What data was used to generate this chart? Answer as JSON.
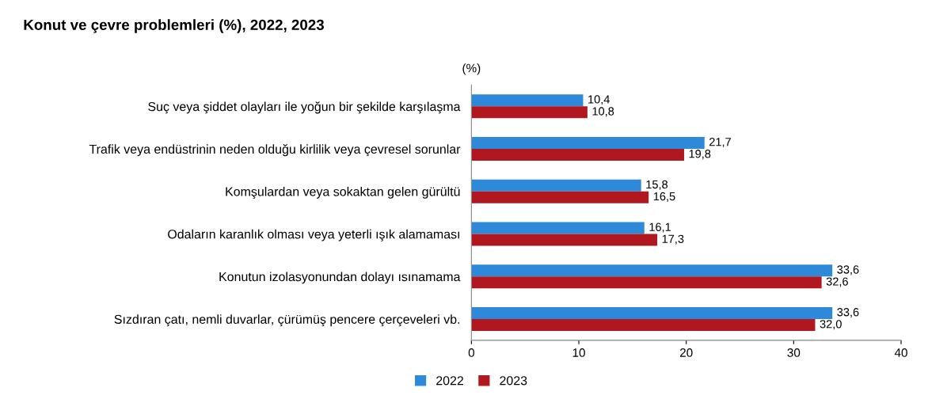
{
  "chart_data": {
    "type": "bar",
    "orientation": "horizontal",
    "title": "Konut ve çevre problemleri (%), 2022, 2023",
    "annotations": [
      "(%)"
    ],
    "categories": [
      "Suç veya şiddet olayları ile yoğun bir şekilde karşılaşma",
      "Trafik veya endüstrinin neden olduğu kirlilik veya çevresel sorunlar",
      "Komşulardan veya sokaktan gelen gürültü",
      "Odaların karanlık olması veya yeterli ışık alamaması",
      "Konutun izolasyonundan dolayı ısınamama",
      "Sızdıran çatı, nemli duvarlar, çürümüş pencere çerçeveleri vb."
    ],
    "series": [
      {
        "name": "2022",
        "color": "#2e8ad8",
        "values": [
          10.4,
          21.7,
          15.8,
          16.1,
          33.6,
          33.6
        ],
        "value_labels": [
          "10,4",
          "21,7",
          "15,8",
          "16,1",
          "33,6",
          "33,6"
        ]
      },
      {
        "name": "2023",
        "color": "#b0171f",
        "values": [
          10.8,
          19.8,
          16.5,
          17.3,
          32.6,
          32.0
        ],
        "value_labels": [
          "10,8",
          "19,8",
          "16,5",
          "17,3",
          "32,6",
          "32,0"
        ]
      }
    ],
    "xlim": [
      0,
      40
    ],
    "xticks": [
      0,
      10,
      20,
      30,
      40
    ],
    "grid": false,
    "legend": "bottom"
  }
}
